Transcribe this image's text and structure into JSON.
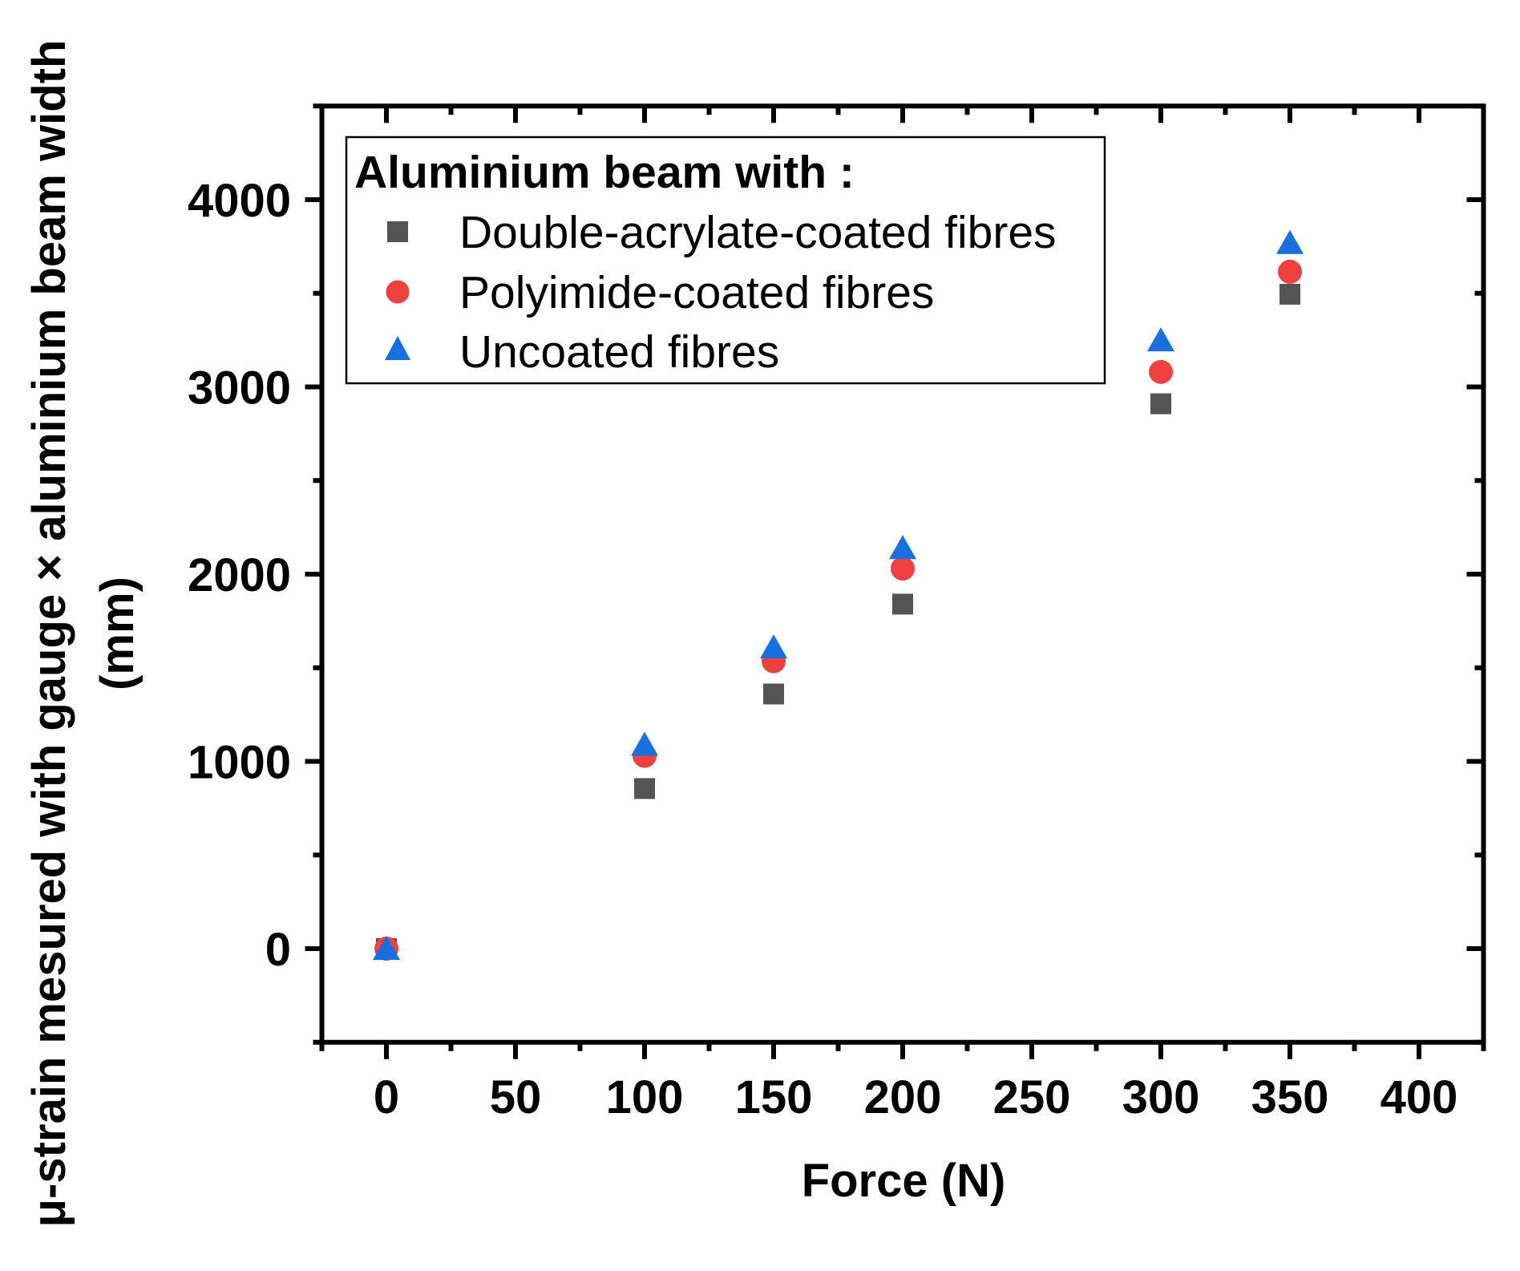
{
  "chart_data": {
    "type": "scatter",
    "title": "",
    "xlabel": "Force (N)",
    "ylabel": [
      "μ-strain mesured with gauge × aluminium beam width",
      "(mm)"
    ],
    "xlim": [
      -25,
      425
    ],
    "ylim": [
      -500,
      4500
    ],
    "x_major_ticks": [
      0,
      50,
      100,
      150,
      200,
      250,
      300,
      350,
      400
    ],
    "x_minor_ticks": [
      -25,
      25,
      75,
      125,
      175,
      225,
      275,
      325,
      375,
      425
    ],
    "y_major_ticks": [
      0,
      1000,
      2000,
      3000,
      4000
    ],
    "y_minor_ticks": [
      -500,
      500,
      1500,
      2500,
      3500,
      4500
    ],
    "grid": false,
    "legend": {
      "title": "Aluminium beam with :",
      "position": "upper-left"
    },
    "x": [
      0,
      100,
      150,
      200,
      300,
      350
    ],
    "series": [
      {
        "name": "Double-acrylate-coated fibres",
        "marker": "square",
        "color": "#545454",
        "values": [
          0,
          855,
          1360,
          1840,
          2910,
          3495
        ]
      },
      {
        "name": "Polyimide-coated fibres",
        "marker": "circle",
        "color": "#F04040",
        "values": [
          0,
          1030,
          1535,
          2030,
          3080,
          3615
        ]
      },
      {
        "name": "Uncoated fibres",
        "marker": "triangle",
        "color": "#1A6FDF",
        "values": [
          0,
          1090,
          1610,
          2140,
          3250,
          3770
        ]
      }
    ]
  }
}
